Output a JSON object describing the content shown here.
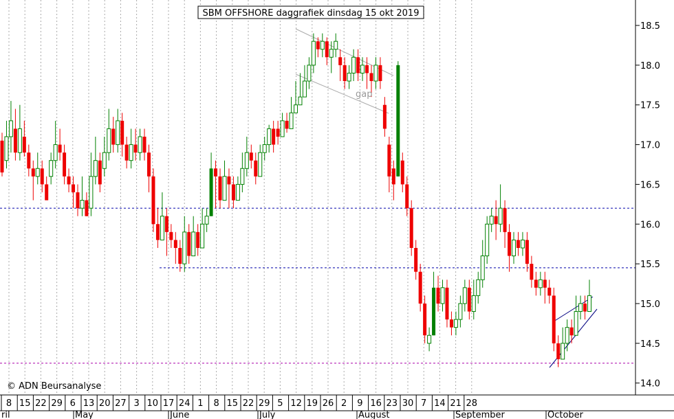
{
  "chart_data": {
    "type": "candlestick",
    "title": "SBM OFFSHORE daggrafiek dinsdag 15 okt 2019",
    "watermark": "© ADN Beursanalyse",
    "annotation": "gap",
    "y_ticks": [
      "18.5",
      "18.0",
      "17.5",
      "17.0",
      "16.5",
      "16.0",
      "15.5",
      "15.0",
      "14.5",
      "14.0"
    ],
    "y_values": [
      18.5,
      18.0,
      17.5,
      17.0,
      16.5,
      16.0,
      15.5,
      15.0,
      14.5,
      14.0
    ],
    "ylim": [
      13.85,
      18.82
    ],
    "day_labels": [
      "8",
      "15",
      "22",
      "29",
      "6",
      "13",
      "20",
      "27",
      "3",
      "10",
      "17",
      "24",
      "1",
      "8",
      "15",
      "22",
      "29",
      "5",
      "12",
      "19",
      "26",
      "2",
      "9",
      "16",
      "23",
      "30",
      "7",
      "14",
      "21",
      "28"
    ],
    "month_labels": [
      "ril",
      "May",
      "June",
      "July",
      "August",
      "September",
      "October"
    ],
    "horizontal_levels": [
      {
        "value": 16.2,
        "color": "#0000aa",
        "style": "dashed"
      },
      {
        "value": 15.45,
        "color": "#0000aa",
        "style": "dashed"
      },
      {
        "value": 14.25,
        "color": "#aa00aa",
        "style": "dashed"
      }
    ],
    "colors": {
      "up": "#008000",
      "down": "#ee0000",
      "grid": "#aaaaaa",
      "trend_gap": "#aaaaaa",
      "trend_wedge": "#000080"
    },
    "candles": [
      [
        17.05,
        16.65,
        17.15,
        16.6
      ],
      [
        16.8,
        17.1,
        17.3,
        16.7
      ],
      [
        17.1,
        17.3,
        17.55,
        16.9
      ],
      [
        17.2,
        16.9,
        17.45,
        16.8
      ],
      [
        16.9,
        17.2,
        17.5,
        16.8
      ],
      [
        17.1,
        16.9,
        17.3,
        16.85
      ],
      [
        16.9,
        16.7,
        17.0,
        16.6
      ],
      [
        16.7,
        16.6,
        16.8,
        16.3
      ],
      [
        16.6,
        16.7,
        16.9,
        16.5
      ],
      [
        16.7,
        16.5,
        16.8,
        16.4
      ],
      [
        16.5,
        16.3,
        16.6,
        16.3
      ],
      [
        16.6,
        16.8,
        16.9,
        16.5
      ],
      [
        16.8,
        17.0,
        17.3,
        16.7
      ],
      [
        17.0,
        16.9,
        17.2,
        16.8
      ],
      [
        16.9,
        16.6,
        17.0,
        16.5
      ],
      [
        16.6,
        16.5,
        16.7,
        16.4
      ],
      [
        16.5,
        16.4,
        16.6,
        16.2
      ],
      [
        16.4,
        16.2,
        16.5,
        16.1
      ],
      [
        16.2,
        16.3,
        16.6,
        16.1
      ],
      [
        16.3,
        16.1,
        16.4,
        16.1
      ],
      [
        16.2,
        16.6,
        16.9,
        16.1
      ],
      [
        16.6,
        16.8,
        17.1,
        16.5
      ],
      [
        16.8,
        16.5,
        16.9,
        16.4
      ],
      [
        16.7,
        16.9,
        17.1,
        16.6
      ],
      [
        16.9,
        17.2,
        17.45,
        16.8
      ],
      [
        17.2,
        17.0,
        17.35,
        16.9
      ],
      [
        17.0,
        17.3,
        17.45,
        16.9
      ],
      [
        17.3,
        17.0,
        17.4,
        16.85
      ],
      [
        17.0,
        16.8,
        17.1,
        16.7
      ],
      [
        16.8,
        17.0,
        17.2,
        16.7
      ],
      [
        17.0,
        16.9,
        17.2,
        16.8
      ],
      [
        16.9,
        17.1,
        17.2,
        16.8
      ],
      [
        17.1,
        16.9,
        17.2,
        16.8
      ],
      [
        16.9,
        16.6,
        17.0,
        16.4
      ],
      [
        16.6,
        16.0,
        16.7,
        15.9
      ],
      [
        16.0,
        15.8,
        16.2,
        15.7
      ],
      [
        15.8,
        16.1,
        16.4,
        15.8
      ],
      [
        16.1,
        15.9,
        16.2,
        15.6
      ],
      [
        15.9,
        15.8,
        16.0,
        15.7
      ],
      [
        15.8,
        15.7,
        15.9,
        15.5
      ],
      [
        15.7,
        15.5,
        15.8,
        15.4
      ],
      [
        15.5,
        15.9,
        16.1,
        15.4
      ],
      [
        15.9,
        15.6,
        16.0,
        15.5
      ],
      [
        15.6,
        15.9,
        16.1,
        15.6
      ],
      [
        15.9,
        15.7,
        16.0,
        15.6
      ],
      [
        15.7,
        16.0,
        16.2,
        15.7
      ],
      [
        16.0,
        16.1,
        16.2,
        15.9
      ],
      [
        16.1,
        16.7,
        16.9,
        16.1
      ],
      [
        16.7,
        16.6,
        16.8,
        16.2
      ],
      [
        16.6,
        16.3,
        16.7,
        16.2
      ],
      [
        16.3,
        16.6,
        16.8,
        16.3
      ],
      [
        16.6,
        16.5,
        16.7,
        16.2
      ],
      [
        16.5,
        16.3,
        16.6,
        16.2
      ],
      [
        16.3,
        16.5,
        16.6,
        16.3
      ],
      [
        16.5,
        16.7,
        16.9,
        16.4
      ],
      [
        16.7,
        16.9,
        17.1,
        16.6
      ],
      [
        16.9,
        16.8,
        17.0,
        16.7
      ],
      [
        16.8,
        16.6,
        16.9,
        16.5
      ],
      [
        16.6,
        16.9,
        17.0,
        16.6
      ],
      [
        16.9,
        17.0,
        17.1,
        16.8
      ],
      [
        17.0,
        17.2,
        17.25,
        16.9
      ],
      [
        17.2,
        17.0,
        17.3,
        16.9
      ],
      [
        17.2,
        17.1,
        17.3,
        17.0
      ],
      [
        17.1,
        17.3,
        17.4,
        17.1
      ],
      [
        17.3,
        17.2,
        17.4,
        17.15
      ],
      [
        17.2,
        17.4,
        17.6,
        17.2
      ],
      [
        17.4,
        17.5,
        17.8,
        17.4
      ],
      [
        17.5,
        17.6,
        17.9,
        17.5
      ],
      [
        17.6,
        17.8,
        18.0,
        17.6
      ],
      [
        17.8,
        18.0,
        18.1,
        17.7
      ],
      [
        18.0,
        18.3,
        18.4,
        17.9
      ],
      [
        18.3,
        18.2,
        18.35,
        18.1
      ],
      [
        18.2,
        18.3,
        18.4,
        18.1
      ],
      [
        18.3,
        18.1,
        18.35,
        18.0
      ],
      [
        18.1,
        18.2,
        18.3,
        17.9
      ],
      [
        18.2,
        18.3,
        18.4,
        18.1
      ],
      [
        18.1,
        18.0,
        18.2,
        17.8
      ],
      [
        18.0,
        17.8,
        18.1,
        17.7
      ],
      [
        17.8,
        17.9,
        18.0,
        17.7
      ],
      [
        17.9,
        18.1,
        18.2,
        17.8
      ],
      [
        18.1,
        17.9,
        18.2,
        17.8
      ],
      [
        17.9,
        18.0,
        18.1,
        17.8
      ],
      [
        18.0,
        17.9,
        18.1,
        17.7
      ],
      [
        17.9,
        17.8,
        18.0,
        17.6
      ],
      [
        17.8,
        18.0,
        18.1,
        17.7
      ],
      [
        18.0,
        17.8,
        18.1,
        17.7
      ],
      [
        17.5,
        17.2,
        17.6,
        17.1
      ],
      [
        17.0,
        16.6,
        17.1,
        16.4
      ],
      [
        16.7,
        16.5,
        16.8,
        16.3
      ],
      [
        16.6,
        18.0,
        18.05,
        16.6
      ],
      [
        16.8,
        16.5,
        16.9,
        16.4
      ],
      [
        16.5,
        16.2,
        16.6,
        16.1
      ],
      [
        16.2,
        15.7,
        16.3,
        15.6
      ],
      [
        15.7,
        15.4,
        15.8,
        15.3
      ],
      [
        15.4,
        15.0,
        15.5,
        14.9
      ],
      [
        15.0,
        14.6,
        15.1,
        14.5
      ],
      [
        14.5,
        14.6,
        14.7,
        14.4
      ],
      [
        14.6,
        15.2,
        15.4,
        14.6
      ],
      [
        15.2,
        15.0,
        15.35,
        14.9
      ],
      [
        15.0,
        15.2,
        15.3,
        14.9
      ],
      [
        15.2,
        14.8,
        15.3,
        14.7
      ],
      [
        14.8,
        14.7,
        14.9,
        14.6
      ],
      [
        14.7,
        14.8,
        14.9,
        14.6
      ],
      [
        14.8,
        15.0,
        15.1,
        14.7
      ],
      [
        15.0,
        15.2,
        15.3,
        14.9
      ],
      [
        15.2,
        14.9,
        15.3,
        14.8
      ],
      [
        14.9,
        15.1,
        15.3,
        14.8
      ],
      [
        15.1,
        15.3,
        15.4,
        15.0
      ],
      [
        15.3,
        15.6,
        15.8,
        15.2
      ],
      [
        15.6,
        16.0,
        16.1,
        15.5
      ],
      [
        16.0,
        16.1,
        16.2,
        15.9
      ],
      [
        16.1,
        16.0,
        16.3,
        15.8
      ],
      [
        16.0,
        16.2,
        16.5,
        15.9
      ],
      [
        16.2,
        15.9,
        16.3,
        15.7
      ],
      [
        15.9,
        15.6,
        16.0,
        15.4
      ],
      [
        15.6,
        15.8,
        15.9,
        15.5
      ],
      [
        15.8,
        15.7,
        15.9,
        15.6
      ],
      [
        15.7,
        15.8,
        15.9,
        15.6
      ],
      [
        15.8,
        15.5,
        15.9,
        15.4
      ],
      [
        15.5,
        15.3,
        15.6,
        15.2
      ],
      [
        15.3,
        15.2,
        15.4,
        15.1
      ],
      [
        15.2,
        15.3,
        15.4,
        15.1
      ],
      [
        15.3,
        15.2,
        15.4,
        15.0
      ],
      [
        15.2,
        15.1,
        15.3,
        15.0
      ],
      [
        15.1,
        14.5,
        15.2,
        14.4
      ],
      [
        14.5,
        14.3,
        14.6,
        14.2
      ],
      [
        14.3,
        14.5,
        14.7,
        14.3
      ],
      [
        14.5,
        14.7,
        14.8,
        14.4
      ],
      [
        14.7,
        14.6,
        14.8,
        14.5
      ],
      [
        14.6,
        14.9,
        15.1,
        14.6
      ],
      [
        14.9,
        15.0,
        15.1,
        14.8
      ],
      [
        15.0,
        14.9,
        15.1,
        14.8
      ],
      [
        14.9,
        15.1,
        15.3,
        14.9
      ]
    ]
  }
}
